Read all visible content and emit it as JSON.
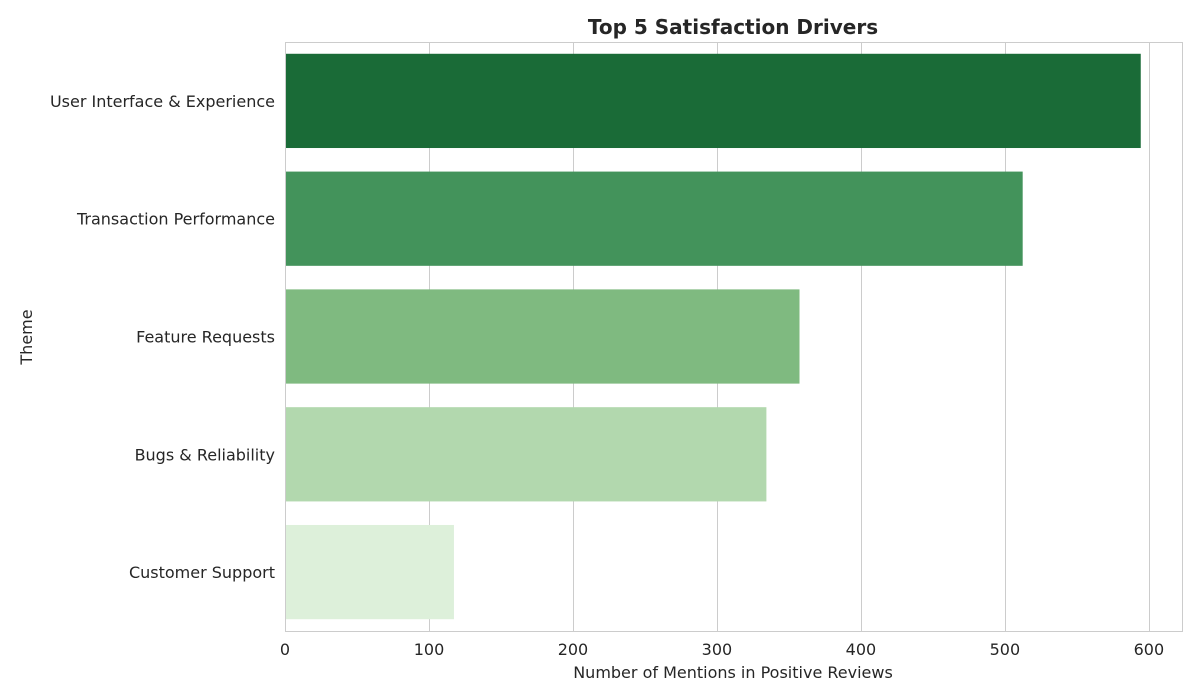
{
  "chart_data": {
    "type": "bar",
    "orientation": "horizontal",
    "title": "Top 5 Satisfaction Drivers",
    "xlabel": "Number of Mentions in Positive Reviews",
    "ylabel": "Theme",
    "categories": [
      "User Interface & Experience",
      "Transaction Performance",
      "Feature Requests",
      "Bugs & Reliability",
      "Customer Support"
    ],
    "values": [
      594,
      512,
      357,
      334,
      117
    ],
    "colors": [
      "#1a6b37",
      "#43935b",
      "#7fba80",
      "#b2d8ae",
      "#ddf0da"
    ],
    "xlim": [
      0,
      623
    ],
    "xticks": [
      0,
      100,
      200,
      300,
      400,
      500,
      600
    ],
    "grid": true
  }
}
